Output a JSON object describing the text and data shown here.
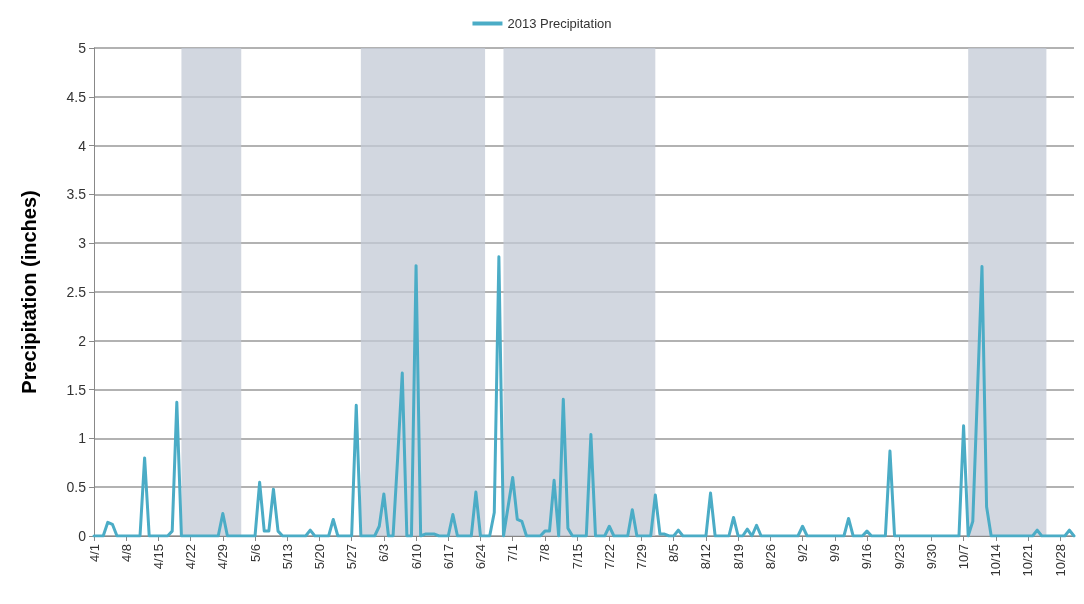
{
  "chart_data": {
    "type": "line",
    "ylabel": "Precipitation (inches)",
    "legend": "top",
    "grid": "y",
    "marker": "none",
    "line_style": "solid",
    "xlim": [
      "--04-01",
      "--10-31"
    ],
    "ylim": [
      0,
      5
    ],
    "yticks": [
      0,
      0.5,
      1,
      1.5,
      2,
      2.5,
      3,
      3.5,
      4,
      4.5,
      5
    ],
    "xticks": [
      {
        "value": "--04-01",
        "label": "4/1"
      },
      {
        "value": "--04-08",
        "label": "4/8"
      },
      {
        "value": "--04-15",
        "label": "4/15"
      },
      {
        "value": "--04-22",
        "label": "4/22"
      },
      {
        "value": "--04-29",
        "label": "4/29"
      },
      {
        "value": "--05-06",
        "label": "5/6"
      },
      {
        "value": "--05-13",
        "label": "5/13"
      },
      {
        "value": "--05-20",
        "label": "5/20"
      },
      {
        "value": "--05-27",
        "label": "5/27"
      },
      {
        "value": "--06-03",
        "label": "6/3"
      },
      {
        "value": "--06-10",
        "label": "6/10"
      },
      {
        "value": "--06-17",
        "label": "6/17"
      },
      {
        "value": "--06-24",
        "label": "6/24"
      },
      {
        "value": "--07-01",
        "label": "7/1"
      },
      {
        "value": "--07-08",
        "label": "7/8"
      },
      {
        "value": "--07-15",
        "label": "7/15"
      },
      {
        "value": "--07-22",
        "label": "7/22"
      },
      {
        "value": "--07-29",
        "label": "7/29"
      },
      {
        "value": "--08-05",
        "label": "8/5"
      },
      {
        "value": "--08-12",
        "label": "8/12"
      },
      {
        "value": "--08-19",
        "label": "8/19"
      },
      {
        "value": "--08-26",
        "label": "8/26"
      },
      {
        "value": "--09-02",
        "label": "9/2"
      },
      {
        "value": "--09-09",
        "label": "9/9"
      },
      {
        "value": "--09-16",
        "label": "9/16"
      },
      {
        "value": "--09-23",
        "label": "9/23"
      },
      {
        "value": "--09-30",
        "label": "9/30"
      },
      {
        "value": "--10-07",
        "label": "10/7"
      },
      {
        "value": "--10-14",
        "label": "10/14"
      },
      {
        "value": "--10-21",
        "label": "10/21"
      },
      {
        "value": "--10-28",
        "label": "10/28"
      }
    ],
    "bands": [
      {
        "axis": "x",
        "from": "--04-20",
        "to": "--05-03",
        "color": "#c3c9d6"
      },
      {
        "axis": "x",
        "from": "--05-29",
        "to": "--06-25",
        "color": "#c3c9d6"
      },
      {
        "axis": "x",
        "from": "--06-29",
        "to": "--08-01",
        "color": "#c3c9d6"
      },
      {
        "axis": "x",
        "from": "--10-08",
        "to": "--10-25",
        "color": "#c3c9d6"
      }
    ],
    "series": [
      {
        "name": "2013 Precipitation",
        "color": "#4bacc6",
        "x": [
          "--04-01",
          "--04-03",
          "--04-04",
          "--04-05",
          "--04-06",
          "--04-11",
          "--04-12",
          "--04-13",
          "--04-17",
          "--04-18",
          "--04-19",
          "--04-20",
          "--04-28",
          "--04-29",
          "--04-30",
          "--05-06",
          "--05-07",
          "--05-08",
          "--05-09",
          "--05-10",
          "--05-11",
          "--05-12",
          "--05-17",
          "--05-18",
          "--05-19",
          "--05-22",
          "--05-23",
          "--05-24",
          "--05-27",
          "--05-28",
          "--05-29",
          "--06-01",
          "--06-02",
          "--06-03",
          "--06-04",
          "--06-05",
          "--06-06",
          "--06-07",
          "--06-08",
          "--06-09",
          "--06-10",
          "--06-11",
          "--06-12",
          "--06-14",
          "--06-15",
          "--06-17",
          "--06-18",
          "--06-19",
          "--06-22",
          "--06-23",
          "--06-24",
          "--06-26",
          "--06-27",
          "--06-28",
          "--06-29",
          "--07-01",
          "--07-02",
          "--07-03",
          "--07-04",
          "--07-07",
          "--07-08",
          "--07-09",
          "--07-10",
          "--07-11",
          "--07-12",
          "--07-13",
          "--07-14",
          "--07-17",
          "--07-18",
          "--07-19",
          "--07-21",
          "--07-22",
          "--07-23",
          "--07-26",
          "--07-27",
          "--07-28",
          "--07-31",
          "--08-01",
          "--08-02",
          "--08-03",
          "--08-04",
          "--08-05",
          "--08-06",
          "--08-07",
          "--08-12",
          "--08-13",
          "--08-14",
          "--08-17",
          "--08-18",
          "--08-19",
          "--08-20",
          "--08-21",
          "--08-22",
          "--08-23",
          "--08-24",
          "--09-01",
          "--09-02",
          "--09-03",
          "--09-11",
          "--09-12",
          "--09-13",
          "--09-15",
          "--09-16",
          "--09-17",
          "--09-20",
          "--09-21",
          "--09-22",
          "--10-06",
          "--10-07",
          "--10-08",
          "--10-09",
          "--10-10",
          "--10-11",
          "--10-12",
          "--10-13",
          "--10-22",
          "--10-23",
          "--10-24",
          "--10-29",
          "--10-30",
          "--10-31"
        ],
        "values": [
          0,
          0,
          0.14,
          0.12,
          0,
          0,
          0.8,
          0,
          0,
          0.05,
          1.37,
          0,
          0,
          0.23,
          0,
          0,
          0.55,
          0.05,
          0.05,
          0.48,
          0.05,
          0,
          0,
          0.06,
          0,
          0,
          0.17,
          0,
          0,
          1.34,
          0,
          0,
          0.1,
          0.43,
          0,
          0,
          0.8,
          1.67,
          0,
          0,
          2.77,
          0,
          0.02,
          0.02,
          0,
          0,
          0.22,
          0,
          0,
          0.45,
          0,
          0,
          0.24,
          2.86,
          0,
          0.6,
          0.17,
          0.15,
          0,
          0,
          0.05,
          0.05,
          0.57,
          0,
          1.4,
          0.08,
          0,
          0,
          1.04,
          0,
          0,
          0.1,
          0,
          0,
          0.27,
          0,
          0,
          0.42,
          0.02,
          0.02,
          0,
          0,
          0.06,
          0,
          0,
          0.44,
          0,
          0,
          0.19,
          0,
          0,
          0.07,
          0,
          0.11,
          0,
          0,
          0.1,
          0,
          0,
          0.18,
          0,
          0,
          0.05,
          0,
          0,
          0.87,
          0,
          0,
          1.13,
          0,
          0.15,
          1.45,
          2.76,
          0.3,
          0,
          0,
          0.06,
          0,
          0,
          0.06,
          0
        ]
      }
    ]
  }
}
